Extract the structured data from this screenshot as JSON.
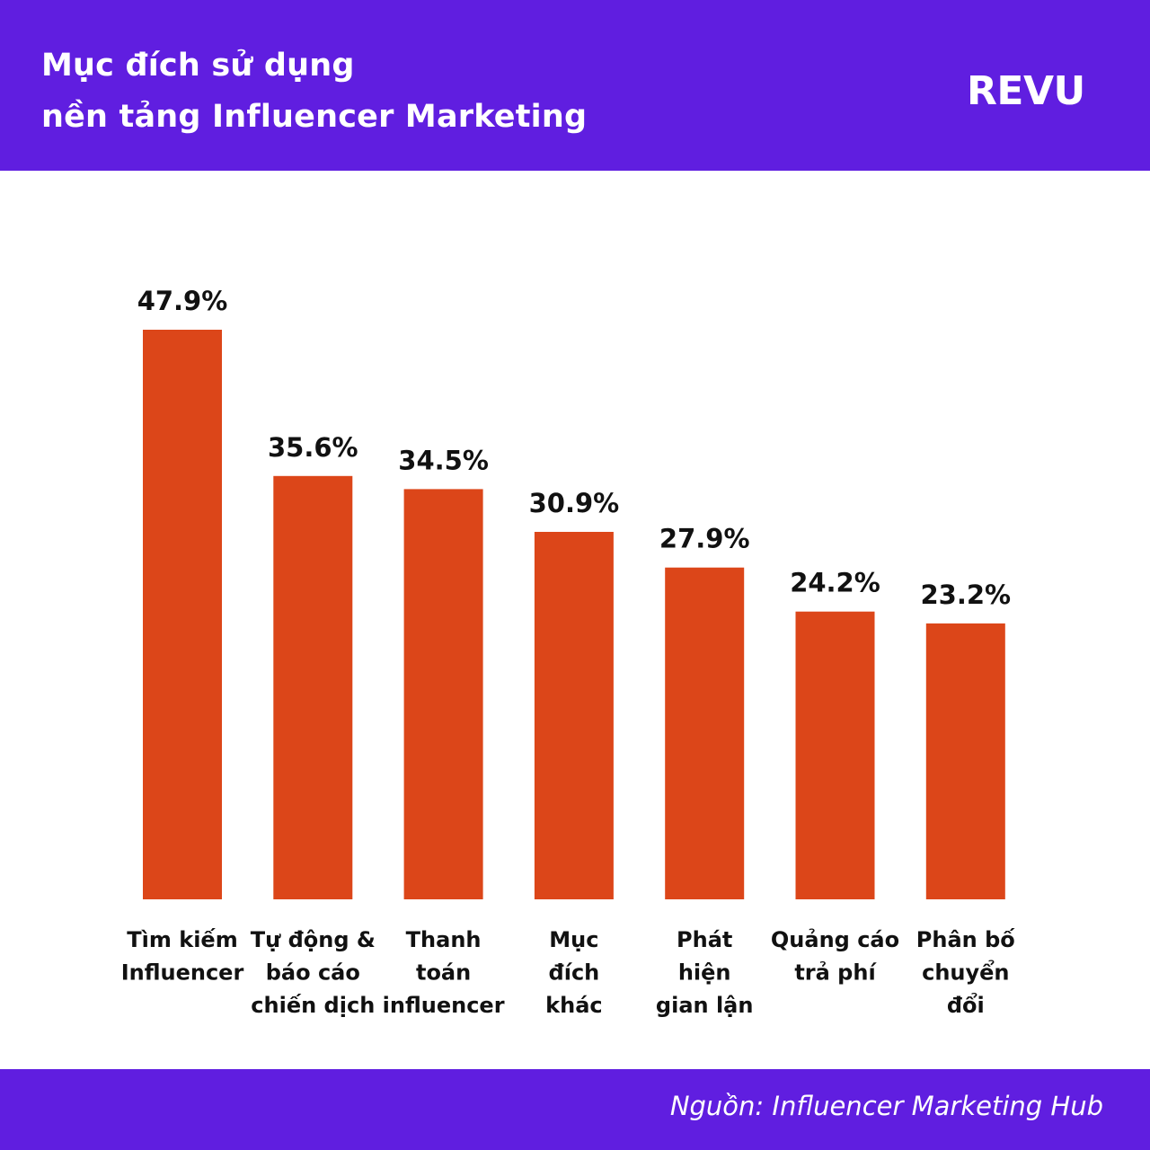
{
  "header": {
    "title_line1": "Mục đích sử dụng",
    "title_line2": "nền tảng Influencer Marketing",
    "logo": "REVU"
  },
  "footer": {
    "source": "Nguồn: Influencer Marketing Hub"
  },
  "colors": {
    "brand": "#601ee0",
    "bar": "#dc4619"
  },
  "chart_data": {
    "type": "bar",
    "title": "Mục đích sử dụng nền tảng Influencer Marketing",
    "categories": [
      [
        "Tìm kiếm",
        "Influencer"
      ],
      [
        "Tự động &",
        "báo cáo",
        "chiến dịch"
      ],
      [
        "Thanh",
        "toán",
        "influencer"
      ],
      [
        "Mục",
        "đích",
        "khác"
      ],
      [
        "Phát",
        "hiện",
        "gian lận"
      ],
      [
        "Quảng cáo",
        "trả phí"
      ],
      [
        "Phân bố",
        "chuyển",
        "đổi"
      ]
    ],
    "values": [
      47.9,
      35.6,
      34.5,
      30.9,
      27.9,
      24.2,
      23.2
    ],
    "value_labels": [
      "47.9%",
      "35.6%",
      "34.5%",
      "30.9%",
      "27.9%",
      "24.2%",
      "23.2%"
    ],
    "ylim": [
      0,
      47.9
    ],
    "grid": false,
    "legend": "none"
  }
}
